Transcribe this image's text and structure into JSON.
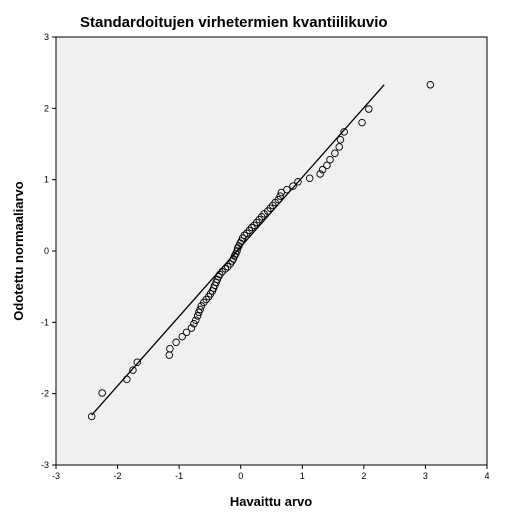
{
  "chart_data": {
    "type": "scatter",
    "title": "Standardoitujen virhetermien kvantiilikuvio",
    "xlabel": "Havaittu arvo",
    "ylabel": "Odotettu normaaliarvo",
    "xlim": [
      -3,
      4
    ],
    "ylim": [
      -3,
      3
    ],
    "x_ticks": [
      -3,
      -2,
      -1,
      0,
      1,
      2,
      3,
      4
    ],
    "y_ticks": [
      -3,
      -2,
      -1,
      0,
      1,
      2,
      3
    ],
    "x_tick_labels": [
      "-3",
      "-2",
      "-1",
      "0",
      "1",
      "2",
      "3",
      "4"
    ],
    "y_tick_labels": [
      "-3",
      "-2",
      "-1",
      "0",
      "1",
      "2",
      "3"
    ],
    "grid": false,
    "reference_line": {
      "x": [
        -2.42,
        2.33
      ],
      "y": [
        -2.3,
        2.33
      ]
    },
    "points": [
      {
        "x": -2.42,
        "y": -2.32
      },
      {
        "x": -2.25,
        "y": -1.99
      },
      {
        "x": -1.85,
        "y": -1.8
      },
      {
        "x": -1.75,
        "y": -1.67
      },
      {
        "x": -1.68,
        "y": -1.56
      },
      {
        "x": -1.16,
        "y": -1.46
      },
      {
        "x": -1.15,
        "y": -1.37
      },
      {
        "x": -1.05,
        "y": -1.28
      },
      {
        "x": -0.95,
        "y": -1.2
      },
      {
        "x": -0.88,
        "y": -1.14
      },
      {
        "x": -0.8,
        "y": -1.08
      },
      {
        "x": -0.76,
        "y": -1.02
      },
      {
        "x": -0.73,
        "y": -0.97
      },
      {
        "x": -0.7,
        "y": -0.91
      },
      {
        "x": -0.68,
        "y": -0.86
      },
      {
        "x": -0.66,
        "y": -0.82
      },
      {
        "x": -0.64,
        "y": -0.77
      },
      {
        "x": -0.6,
        "y": -0.72
      },
      {
        "x": -0.56,
        "y": -0.68
      },
      {
        "x": -0.52,
        "y": -0.64
      },
      {
        "x": -0.49,
        "y": -0.6
      },
      {
        "x": -0.46,
        "y": -0.56
      },
      {
        "x": -0.44,
        "y": -0.52
      },
      {
        "x": -0.42,
        "y": -0.48
      },
      {
        "x": -0.4,
        "y": -0.44
      },
      {
        "x": -0.38,
        "y": -0.4
      },
      {
        "x": -0.36,
        "y": -0.36
      },
      {
        "x": -0.34,
        "y": -0.33
      },
      {
        "x": -0.3,
        "y": -0.29
      },
      {
        "x": -0.25,
        "y": -0.25
      },
      {
        "x": -0.21,
        "y": -0.22
      },
      {
        "x": -0.17,
        "y": -0.18
      },
      {
        "x": -0.14,
        "y": -0.14
      },
      {
        "x": -0.12,
        "y": -0.11
      },
      {
        "x": -0.1,
        "y": -0.07
      },
      {
        "x": -0.08,
        "y": -0.04
      },
      {
        "x": -0.06,
        "y": 0.0
      },
      {
        "x": -0.05,
        "y": 0.04
      },
      {
        "x": -0.03,
        "y": 0.07
      },
      {
        "x": -0.01,
        "y": 0.11
      },
      {
        "x": 0.01,
        "y": 0.14
      },
      {
        "x": 0.03,
        "y": 0.18
      },
      {
        "x": 0.06,
        "y": 0.22
      },
      {
        "x": 0.1,
        "y": 0.25
      },
      {
        "x": 0.14,
        "y": 0.29
      },
      {
        "x": 0.18,
        "y": 0.33
      },
      {
        "x": 0.22,
        "y": 0.36
      },
      {
        "x": 0.26,
        "y": 0.4
      },
      {
        "x": 0.3,
        "y": 0.44
      },
      {
        "x": 0.34,
        "y": 0.48
      },
      {
        "x": 0.38,
        "y": 0.52
      },
      {
        "x": 0.44,
        "y": 0.56
      },
      {
        "x": 0.48,
        "y": 0.6
      },
      {
        "x": 0.52,
        "y": 0.64
      },
      {
        "x": 0.56,
        "y": 0.68
      },
      {
        "x": 0.61,
        "y": 0.72
      },
      {
        "x": 0.64,
        "y": 0.77
      },
      {
        "x": 0.66,
        "y": 0.82
      },
      {
        "x": 0.75,
        "y": 0.86
      },
      {
        "x": 0.85,
        "y": 0.91
      },
      {
        "x": 0.93,
        "y": 0.97
      },
      {
        "x": 1.12,
        "y": 1.02
      },
      {
        "x": 1.29,
        "y": 1.08
      },
      {
        "x": 1.33,
        "y": 1.14
      },
      {
        "x": 1.4,
        "y": 1.2
      },
      {
        "x": 1.45,
        "y": 1.28
      },
      {
        "x": 1.53,
        "y": 1.37
      },
      {
        "x": 1.6,
        "y": 1.46
      },
      {
        "x": 1.62,
        "y": 1.56
      },
      {
        "x": 1.68,
        "y": 1.67
      },
      {
        "x": 1.97,
        "y": 1.8
      },
      {
        "x": 2.08,
        "y": 1.99
      },
      {
        "x": 3.08,
        "y": 2.33
      }
    ]
  }
}
